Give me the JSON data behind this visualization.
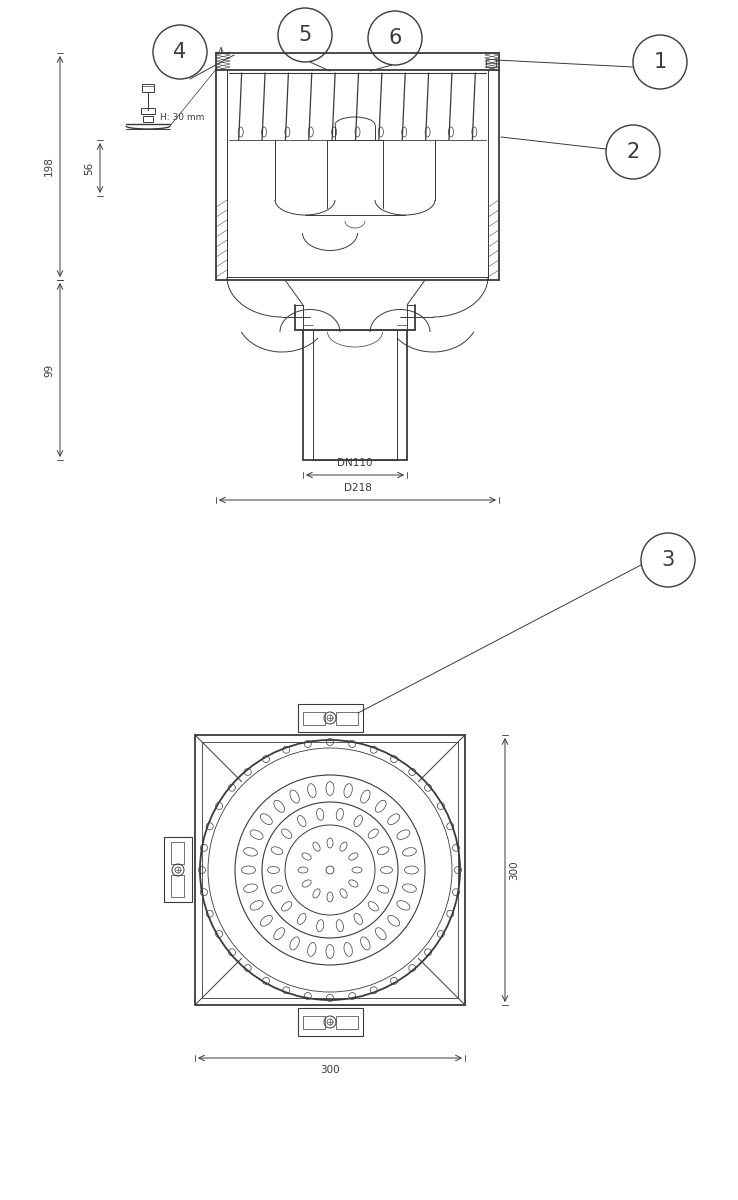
{
  "bg_color": "#ffffff",
  "lc": "#3a3a3a",
  "lw": 0.7,
  "tlw": 1.3,
  "fig_width": 7.38,
  "fig_height": 12.0,
  "labels": [
    "1",
    "2",
    "3",
    "4",
    "5",
    "6"
  ],
  "dims": {
    "h198": "198",
    "h99": "99",
    "h56": "56",
    "dn110": "DN110",
    "d218": "D218",
    "w300": "300",
    "h300": "300",
    "h30mm": "H: 30 mm"
  }
}
